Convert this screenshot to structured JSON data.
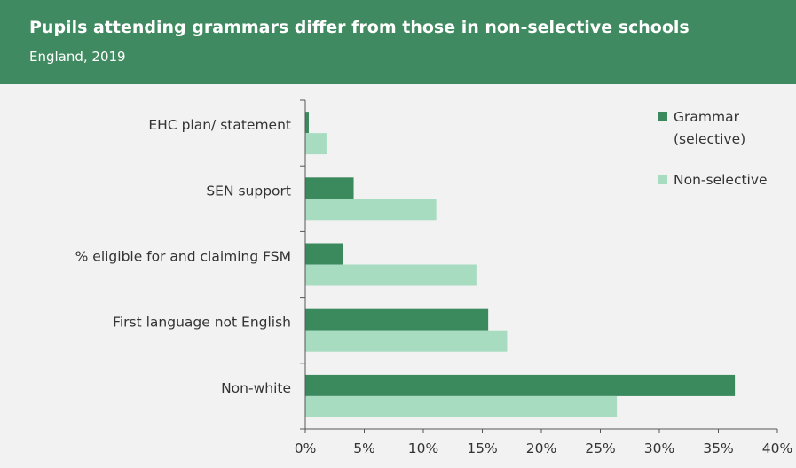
{
  "header": {
    "title": "Pupils attending grammars differ from those in non-selective schools",
    "subtitle": "England, 2019"
  },
  "colors": {
    "header_bg": "#3f8a60",
    "grammar": "#3a8a5e",
    "non_selective": "#a8dcc1"
  },
  "chart_data": {
    "type": "bar",
    "orientation": "horizontal",
    "categories": [
      "EHC plan/ statement",
      "SEN support",
      "% eligible for and claiming FSM",
      "First language not English",
      "Non-white"
    ],
    "series": [
      {
        "name": "Grammar (selective)",
        "legend_lines": [
          "Grammar",
          "(selective)"
        ],
        "values": [
          0.3,
          4.1,
          3.2,
          15.5,
          36.4
        ]
      },
      {
        "name": "Non-selective",
        "legend_lines": [
          "Non-selective"
        ],
        "values": [
          1.8,
          11.1,
          14.5,
          17.1,
          26.4
        ]
      }
    ],
    "xlim": [
      0,
      40
    ],
    "xticks": [
      "0%",
      "5%",
      "10%",
      "15%",
      "20%",
      "25%",
      "30%",
      "35%",
      "40%"
    ],
    "xtick_values": [
      0,
      5,
      10,
      15,
      20,
      25,
      30,
      35,
      40
    ],
    "legend_position": "top-right",
    "grid": false
  }
}
